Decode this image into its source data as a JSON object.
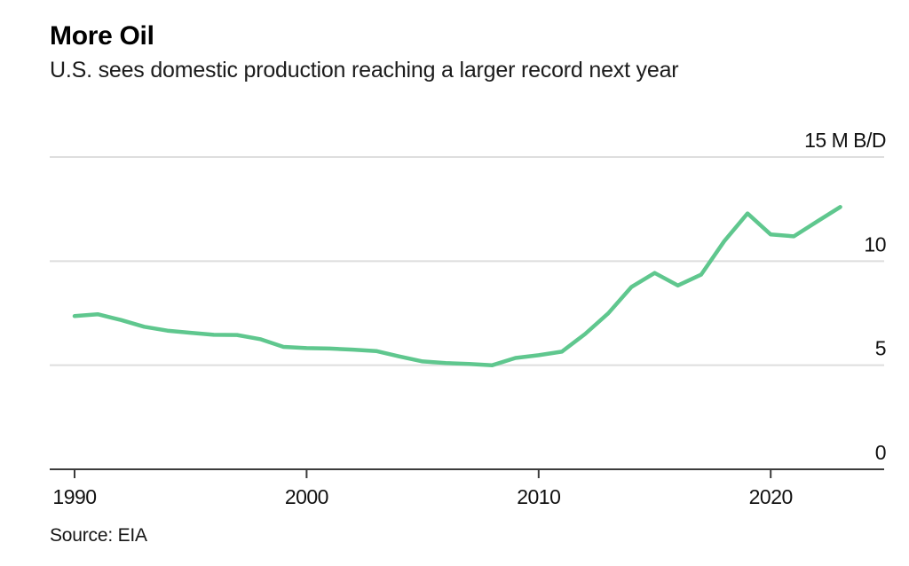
{
  "chart_data": {
    "type": "line",
    "title": "More Oil",
    "subtitle": "U.S. sees domestic production reaching a larger record next year",
    "source": "Source: EIA",
    "unit": "M B/D",
    "series_description": "U.S. domestic oil production, millions of barrels per day",
    "x": [
      1990,
      1991,
      1992,
      1993,
      1994,
      1995,
      1996,
      1997,
      1998,
      1999,
      2000,
      2001,
      2002,
      2003,
      2004,
      2005,
      2006,
      2007,
      2008,
      2009,
      2010,
      2011,
      2012,
      2013,
      2014,
      2015,
      2016,
      2017,
      2018,
      2019,
      2020,
      2021,
      2022,
      2023
    ],
    "values": [
      7.36,
      7.45,
      7.17,
      6.85,
      6.66,
      6.56,
      6.46,
      6.45,
      6.25,
      5.88,
      5.82,
      5.8,
      5.75,
      5.68,
      5.42,
      5.18,
      5.1,
      5.06,
      5.0,
      5.35,
      5.48,
      5.65,
      6.5,
      7.49,
      8.76,
      9.43,
      8.83,
      9.35,
      10.96,
      12.29,
      11.28,
      11.19,
      11.9,
      12.6
    ],
    "xlabel": "",
    "ylabel": "M B/D",
    "ylim": [
      0,
      15
    ],
    "xlim": [
      1989,
      2025
    ],
    "grid": "horizontal",
    "legend": "none",
    "yticks": [
      {
        "value": 15,
        "label": "15 M B/D"
      },
      {
        "value": 10,
        "label": "10"
      },
      {
        "value": 5,
        "label": "5"
      },
      {
        "value": 0,
        "label": "0"
      }
    ],
    "xticks": [
      {
        "value": 1990,
        "label": "1990"
      },
      {
        "value": 2000,
        "label": "2000"
      },
      {
        "value": 2010,
        "label": "2010"
      },
      {
        "value": 2020,
        "label": "2020"
      }
    ],
    "colors": {
      "line": "#5fc78e",
      "grid": "#dedede",
      "axis": "#3b3b3b",
      "tick_text": "#111111",
      "background": "#ffffff"
    }
  }
}
